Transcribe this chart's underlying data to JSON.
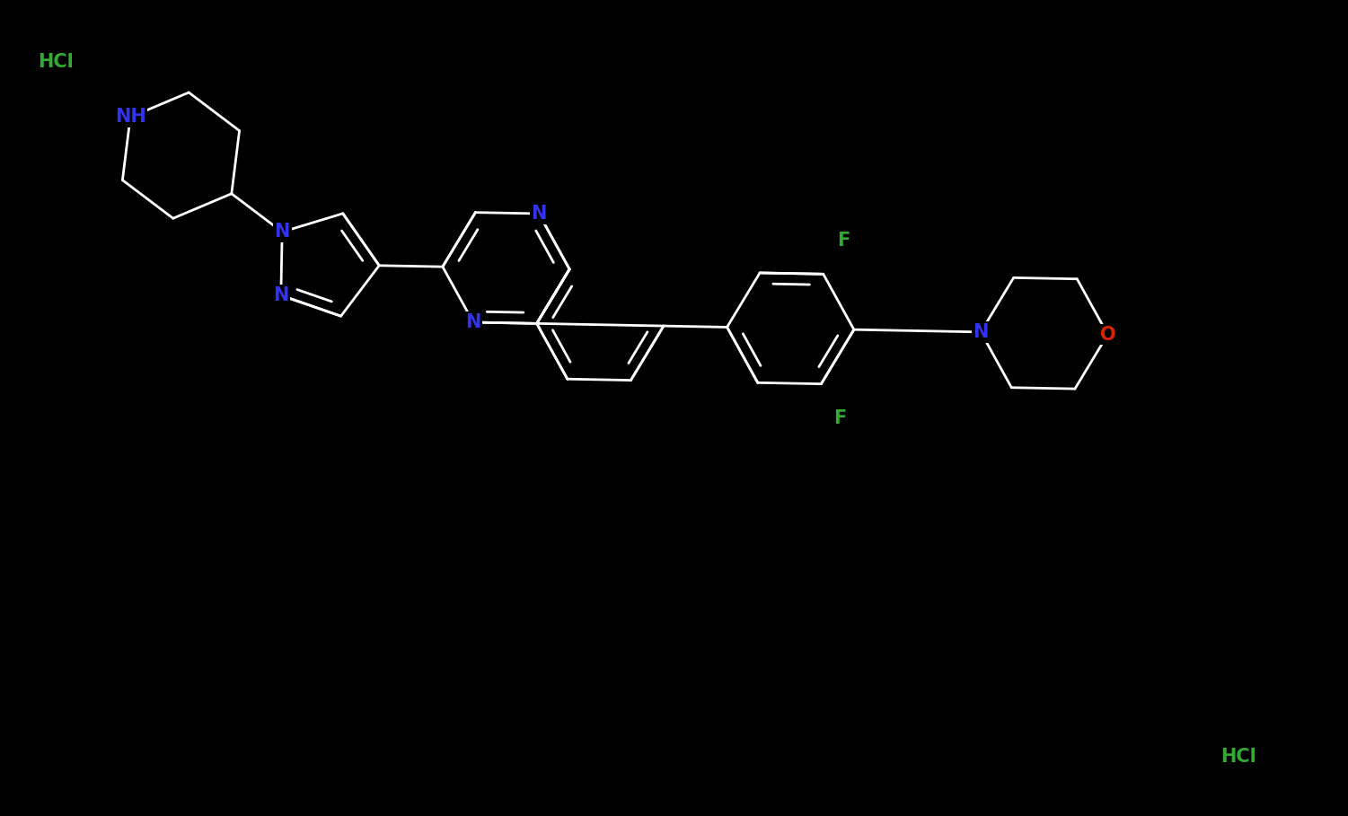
{
  "background": "#000000",
  "bond_color": "#ffffff",
  "N_color": "#3333ee",
  "O_color": "#dd2200",
  "F_color": "#33aa33",
  "HCl_color": "#33aa33",
  "NH_color": "#3333ee",
  "bond_lw": 2.0,
  "font_size": 15,
  "figsize": [
    15.01,
    9.09
  ],
  "dpi": 100,
  "hcl1": [
    0.028,
    0.935
  ],
  "hcl2": [
    0.932,
    0.062
  ]
}
